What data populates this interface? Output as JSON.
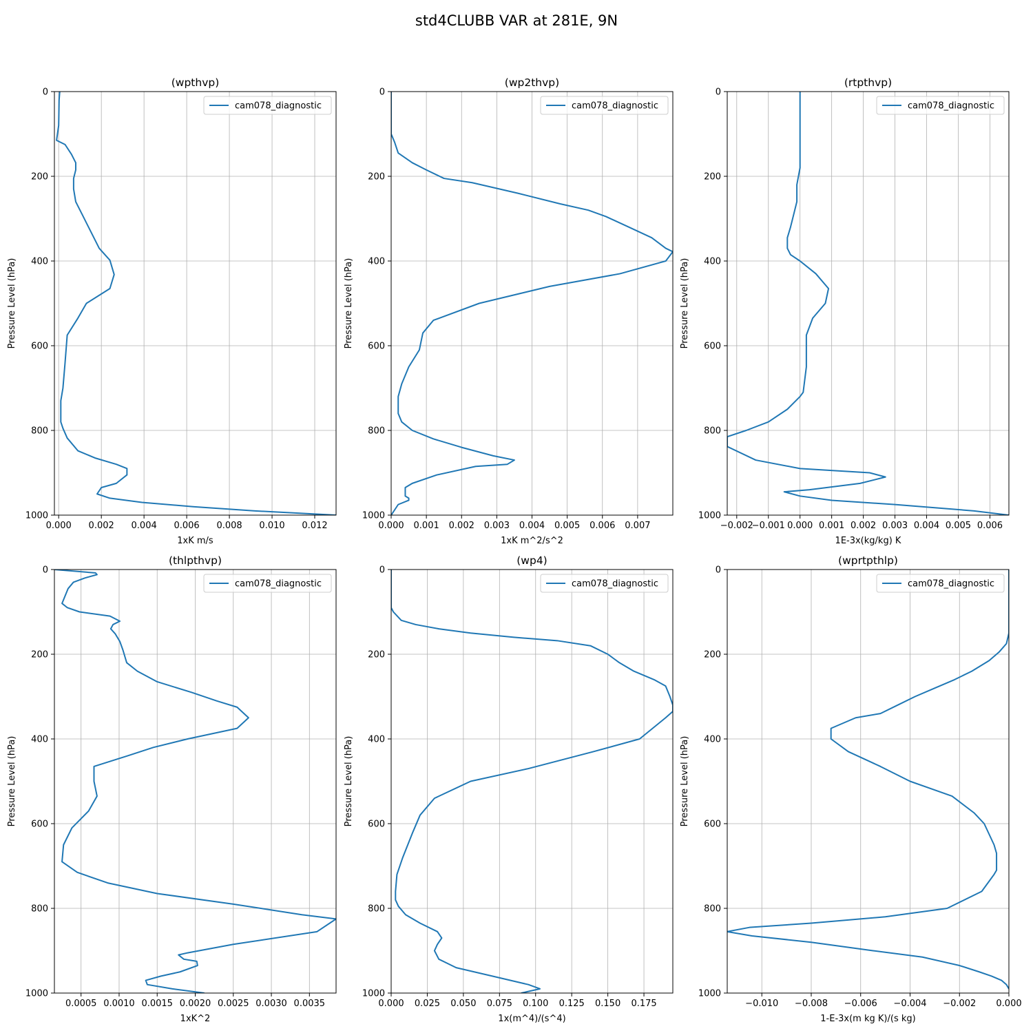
{
  "figure": {
    "title": "std4CLUBB VAR at 281E, 9N"
  },
  "chart_data": [
    {
      "type": "line",
      "title": "(wpthvp)",
      "xlabel": "1xK m/s",
      "ylabel": "Pressure Level (hPa)",
      "xlim": [
        -0.0002,
        0.013
      ],
      "ylim": [
        1000,
        0
      ],
      "xticks": [
        0,
        0.002,
        0.004,
        0.006,
        0.008,
        0.01,
        0.012
      ],
      "xtick_labels": [
        "0.000",
        "0.002",
        "0.004",
        "0.006",
        "0.008",
        "0.010",
        "0.012"
      ],
      "yticks": [
        0,
        200,
        400,
        600,
        800,
        1000
      ],
      "ytick_labels": [
        "0",
        "200",
        "400",
        "600",
        "800",
        "1000"
      ],
      "grid": true,
      "legend": "top-right",
      "series": [
        {
          "name": "cam078_diagnostic",
          "x": [
            5e-05,
            2e-05,
            0.0,
            -0.0001,
            0.0003,
            0.0006,
            0.0008,
            0.0008,
            0.0007,
            0.0007,
            0.0008,
            0.0011,
            0.0015,
            0.0019,
            0.0024,
            0.0026,
            0.0024,
            0.0013,
            0.0009,
            0.0004,
            0.0003,
            0.0002,
            0.0001,
            0.0001,
            0.0001,
            0.0002,
            0.0004,
            0.0009,
            0.0017,
            0.0027,
            0.0032,
            0.0032,
            0.0027,
            0.002,
            0.0018,
            0.0024,
            0.0039,
            0.0063,
            0.0092,
            0.013
          ],
          "y": [
            0,
            20,
            80,
            115,
            125,
            148,
            168,
            185,
            205,
            230,
            260,
            290,
            330,
            370,
            398,
            432,
            465,
            500,
            535,
            575,
            640,
            700,
            730,
            760,
            780,
            795,
            818,
            848,
            865,
            880,
            890,
            905,
            925,
            935,
            950,
            960,
            970,
            980,
            990,
            1000
          ]
        }
      ]
    },
    {
      "type": "line",
      "title": "(wp2thvp)",
      "xlabel": "1xK m^2/s^2",
      "ylabel": "Pressure Level (hPa)",
      "xlim": [
        0,
        0.008
      ],
      "ylim": [
        1000,
        0
      ],
      "xticks": [
        0,
        0.001,
        0.002,
        0.003,
        0.004,
        0.005,
        0.006,
        0.007
      ],
      "xtick_labels": [
        "0.000",
        "0.001",
        "0.002",
        "0.003",
        "0.004",
        "0.005",
        "0.006",
        "0.007"
      ],
      "yticks": [
        0,
        200,
        400,
        600,
        800,
        1000
      ],
      "ytick_labels": [
        "0",
        "200",
        "400",
        "600",
        "800",
        "1000"
      ],
      "grid": true,
      "legend": "top-right",
      "series": [
        {
          "name": "cam078_diagnostic",
          "x": [
            0,
            0,
            0,
            0.0001,
            0.0002,
            0.0006,
            0.001,
            0.0015,
            0.0023,
            0.0036,
            0.0048,
            0.0056,
            0.0061,
            0.0067,
            0.0074,
            0.0078,
            0.008,
            0.0078,
            0.0065,
            0.0045,
            0.0025,
            0.0012,
            0.0009,
            0.0008,
            0.0005,
            0.0003,
            0.0002,
            0.0002,
            0.0003,
            0.0006,
            0.0012,
            0.002,
            0.0029,
            0.0035,
            0.0033,
            0.0024,
            0.0013,
            0.0006,
            0.0004,
            0.0004,
            0.0005,
            0.0005,
            0.0002,
            0
          ],
          "y": [
            0,
            80,
            100,
            120,
            145,
            168,
            185,
            205,
            215,
            240,
            265,
            280,
            295,
            318,
            345,
            370,
            378,
            400,
            430,
            460,
            500,
            540,
            570,
            610,
            650,
            690,
            720,
            760,
            780,
            800,
            820,
            840,
            860,
            870,
            880,
            885,
            905,
            925,
            935,
            955,
            960,
            965,
            975,
            1000
          ]
        }
      ]
    },
    {
      "type": "line",
      "title": "(rtpthvp)",
      "xlabel": "1E-3x(kg/kg) K",
      "ylabel": "Pressure Level (hPa)",
      "xlim": [
        -0.0023,
        0.0066
      ],
      "ylim": [
        1000,
        0
      ],
      "xticks": [
        -0.002,
        -0.001,
        0,
        0.001,
        0.002,
        0.003,
        0.004,
        0.005,
        0.006
      ],
      "xtick_labels": [
        "−0.002",
        "−0.001",
        "0.000",
        "0.001",
        "0.002",
        "0.003",
        "0.004",
        "0.005",
        "0.006"
      ],
      "yticks": [
        0,
        200,
        400,
        600,
        800,
        1000
      ],
      "ytick_labels": [
        "0",
        "200",
        "400",
        "600",
        "800",
        "1000"
      ],
      "grid": true,
      "legend": "top-right",
      "series": [
        {
          "name": "cam078_diagnostic",
          "x": [
            0,
            0,
            0,
            -0.0001,
            -0.0001,
            -0.0002,
            -0.0003,
            -0.0004,
            -0.0004,
            -0.0003,
            0,
            0.0005,
            0.0009,
            0.0008,
            0.0004,
            0.0002,
            0.0002,
            0.0001,
            0.0,
            -0.0004,
            -0.001,
            -0.0017,
            -0.0023,
            -0.0023,
            -0.0014,
            0.0,
            0.0022,
            0.0027,
            0.0019,
            0.0003,
            -0.0005,
            0.0,
            0.001,
            0.003,
            0.0055,
            0.0066
          ],
          "y": [
            0,
            100,
            180,
            220,
            260,
            290,
            320,
            345,
            370,
            385,
            400,
            430,
            465,
            500,
            535,
            575,
            650,
            710,
            720,
            750,
            780,
            800,
            815,
            838,
            870,
            890,
            900,
            910,
            925,
            940,
            945,
            955,
            965,
            975,
            990,
            1000
          ]
        }
      ]
    },
    {
      "type": "line",
      "title": "(thlpthvp)",
      "xlabel": "1xK^2",
      "ylabel": "Pressure Level (hPa)",
      "xlim": [
        0.00015,
        0.00385
      ],
      "ylim": [
        1000,
        0
      ],
      "xticks": [
        0.0005,
        0.001,
        0.0015,
        0.002,
        0.0025,
        0.003,
        0.0035
      ],
      "xtick_labels": [
        "0.0005",
        "0.0010",
        "0.0015",
        "0.0020",
        "0.0025",
        "0.0030",
        "0.0035"
      ],
      "yticks": [
        0,
        200,
        400,
        600,
        800,
        1000
      ],
      "ytick_labels": [
        "0",
        "200",
        "400",
        "600",
        "800",
        "1000"
      ],
      "grid": true,
      "legend": "top-right",
      "series": [
        {
          "name": "cam078_diagnostic",
          "x": [
            0.00015,
            0.00069,
            0.00071,
            0.00055,
            0.0004,
            0.00033,
            0.00025,
            0.00032,
            0.00048,
            0.00088,
            0.00101,
            0.00092,
            0.00089,
            0.00095,
            0.00101,
            0.00105,
            0.0011,
            0.00124,
            0.0015,
            0.00195,
            0.00228,
            0.00255,
            0.0027,
            0.00255,
            0.0019,
            0.00145,
            0.00111,
            0.00067,
            0.00067,
            0.00071,
            0.0006,
            0.00038,
            0.00027,
            0.00025,
            0.00045,
            0.00085,
            0.0015,
            0.0025,
            0.0034,
            0.00385,
            0.0036,
            0.0025,
            0.0019,
            0.00178,
            0.00185,
            0.00202,
            0.00203,
            0.0018,
            0.00155,
            0.00135,
            0.00137,
            0.0017,
            0.00212
          ],
          "y": [
            0,
            8,
            12,
            20,
            30,
            45,
            80,
            90,
            100,
            110,
            122,
            130,
            140,
            152,
            170,
            190,
            220,
            240,
            265,
            290,
            310,
            325,
            350,
            375,
            400,
            420,
            440,
            465,
            500,
            535,
            570,
            610,
            650,
            690,
            715,
            740,
            765,
            790,
            815,
            825,
            855,
            885,
            905,
            910,
            920,
            925,
            935,
            950,
            960,
            970,
            980,
            990,
            1000
          ]
        }
      ]
    },
    {
      "type": "line",
      "title": "(wp4)",
      "xlabel": "1x(m^4)/(s^4)",
      "ylabel": "Pressure Level (hPa)",
      "xlim": [
        0,
        0.195
      ],
      "ylim": [
        1000,
        0
      ],
      "xticks": [
        0,
        0.025,
        0.05,
        0.075,
        0.1,
        0.125,
        0.15,
        0.175
      ],
      "xtick_labels": [
        "0.000",
        "0.025",
        "0.050",
        "0.075",
        "0.100",
        "0.125",
        "0.150",
        "0.175"
      ],
      "yticks": [
        0,
        200,
        400,
        600,
        800,
        1000
      ],
      "ytick_labels": [
        "0",
        "200",
        "400",
        "600",
        "800",
        "1000"
      ],
      "grid": true,
      "legend": "top-right",
      "series": [
        {
          "name": "cam078_diagnostic",
          "x": [
            0,
            0,
            0.0015,
            0.007,
            0.017,
            0.033,
            0.055,
            0.085,
            0.115,
            0.138,
            0.15,
            0.158,
            0.168,
            0.182,
            0.19,
            0.193,
            0.195,
            0.195,
            0.19,
            0.172,
            0.14,
            0.095,
            0.055,
            0.03,
            0.02,
            0.015,
            0.008,
            0.004,
            0.003,
            0.003,
            0.005,
            0.01,
            0.02,
            0.032,
            0.035,
            0.032,
            0.03,
            0.033,
            0.045,
            0.07,
            0.095,
            0.103,
            0.09
          ],
          "y": [
            0,
            90,
            100,
            120,
            130,
            140,
            150,
            160,
            168,
            180,
            200,
            220,
            240,
            260,
            275,
            300,
            320,
            335,
            350,
            400,
            430,
            470,
            500,
            540,
            580,
            620,
            680,
            720,
            760,
            780,
            795,
            815,
            835,
            855,
            870,
            885,
            900,
            920,
            940,
            960,
            980,
            990,
            1000
          ]
        }
      ]
    },
    {
      "type": "line",
      "title": "(wprtpthlp)",
      "xlabel": "1-E-3x(m kg K)/(s kg)",
      "ylabel": "Pressure Level (hPa)",
      "xlim": [
        -0.0114,
        0.0
      ],
      "ylim": [
        1000,
        0
      ],
      "xticks": [
        -0.01,
        -0.008,
        -0.006,
        -0.004,
        -0.002,
        0
      ],
      "xtick_labels": [
        "−0.010",
        "−0.008",
        "−0.006",
        "−0.004",
        "−0.002",
        "0.000"
      ],
      "yticks": [
        0,
        200,
        400,
        600,
        800,
        1000
      ],
      "ytick_labels": [
        "0",
        "200",
        "400",
        "600",
        "800",
        "1000"
      ],
      "grid": true,
      "legend": "top-right",
      "series": [
        {
          "name": "cam078_diagnostic",
          "x": [
            0,
            0,
            -0.0001,
            -0.0004,
            -0.0008,
            -0.0015,
            -0.0022,
            -0.003,
            -0.0038,
            -0.0045,
            -0.0052,
            -0.0062,
            -0.0072,
            -0.0072,
            -0.0065,
            -0.0052,
            -0.004,
            -0.0023,
            -0.0014,
            -0.001,
            -0.0008,
            -0.0006,
            -0.0005,
            -0.0005,
            -0.0005,
            -0.0006,
            -0.0011,
            -0.0025,
            -0.005,
            -0.008,
            -0.0105,
            -0.0114,
            -0.0104,
            -0.008,
            -0.0055,
            -0.0035,
            -0.002,
            -0.0012,
            -0.0007,
            -0.0003,
            -0.0001,
            0
          ],
          "y": [
            0,
            150,
            175,
            195,
            215,
            240,
            260,
            280,
            300,
            320,
            340,
            350,
            375,
            400,
            430,
            465,
            500,
            535,
            575,
            600,
            625,
            650,
            670,
            690,
            710,
            720,
            760,
            800,
            820,
            835,
            845,
            855,
            865,
            880,
            900,
            915,
            935,
            950,
            960,
            970,
            980,
            990
          ]
        }
      ]
    }
  ]
}
